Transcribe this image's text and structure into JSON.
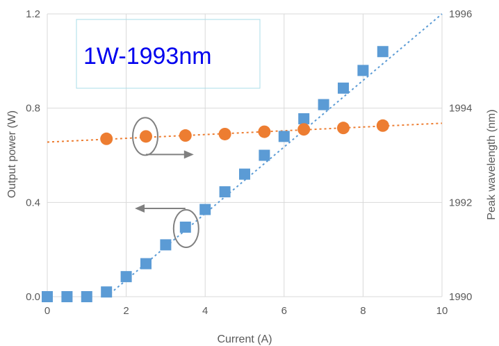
{
  "chart_data": {
    "type": "scatter",
    "title": "1W-1993nm",
    "xlabel": "Current (A)",
    "ylabel_left": "Output power (W)",
    "ylabel_right": "Peak wavelength (nm)",
    "xlim": [
      0,
      10
    ],
    "ylim_left": [
      0.0,
      1.2
    ],
    "ylim_right": [
      1990,
      1996
    ],
    "x_ticks": [
      "0",
      "2",
      "4",
      "6",
      "8",
      "10"
    ],
    "y_left_ticks": [
      "0.0",
      "0.4",
      "0.8",
      "1.2"
    ],
    "y_right_ticks": [
      "1990",
      "1992",
      "1994",
      "1996"
    ],
    "grid": "vertical and horizontal gridlines",
    "series": [
      {
        "axis": "left",
        "marker": "square",
        "color": "#5B9BD5",
        "x": [
          0,
          0.5,
          1.0,
          1.5,
          2.0,
          2.5,
          3.0,
          3.5,
          4.0,
          4.5,
          5.0,
          5.5,
          6.0,
          6.5,
          7.0,
          7.5,
          8.0,
          8.5
        ],
        "y": [
          0.0,
          0.0,
          0.0,
          0.02,
          0.085,
          0.14,
          0.22,
          0.295,
          0.37,
          0.445,
          0.52,
          0.6,
          0.68,
          0.755,
          0.815,
          0.885,
          0.96,
          1.04
        ],
        "trendline": {
          "x": [
            1.5,
            10.0
          ],
          "y": [
            0.0,
            1.2
          ]
        }
      },
      {
        "axis": "right",
        "marker": "circle",
        "color": "#ED7D31",
        "x": [
          1.5,
          2.5,
          3.5,
          4.5,
          5.5,
          6.5,
          7.5,
          8.5
        ],
        "y": [
          1993.35,
          1993.4,
          1993.42,
          1993.45,
          1993.5,
          1993.55,
          1993.58,
          1993.63
        ],
        "trendline": {
          "x": [
            0,
            10
          ],
          "y": [
            1993.28,
            1993.68
          ]
        }
      }
    ],
    "annotations": {
      "circle_left_series_marker": "circle",
      "circle_right_series_marker": "circle",
      "arrows": [
        "right-pointing arrow toward right axis",
        "left-pointing arrow toward left axis"
      ]
    },
    "colors": {
      "grid": "#d9d9d9",
      "arrow": "#808080",
      "title": "#0000ee",
      "title_box": "#a9dce8"
    }
  }
}
